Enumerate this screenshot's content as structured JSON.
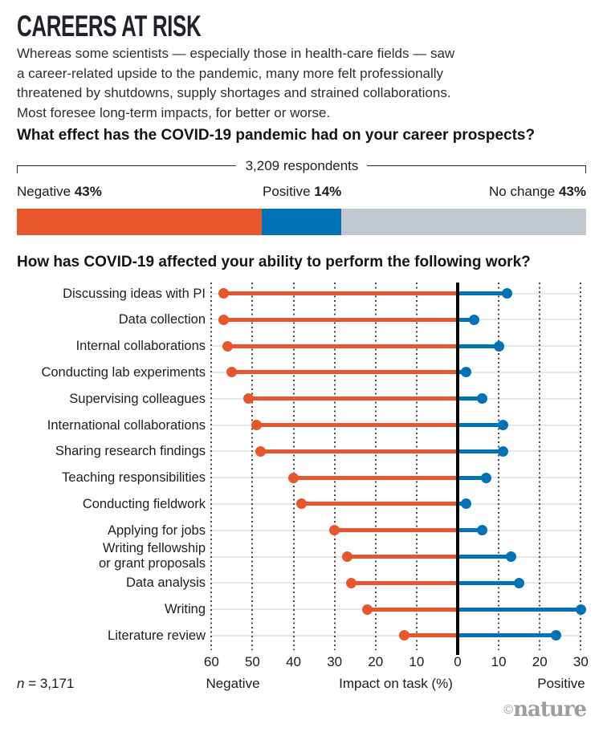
{
  "title": "CAREERS AT RISK",
  "intro_lines": [
    "Whereas some scientists — especially those in health-care fields — saw",
    "a career-related upside to the pandemic, many more felt professionally",
    "threatened by shutdowns, supply shortages and strained collaborations.",
    "Most foresee long-term impacts, for better or worse."
  ],
  "q1": {
    "heading": "What effect has the COVID-19 pandemic had on your career prospects?",
    "respondents_label": "3,209 respondents",
    "segments": [
      {
        "label": "Negative",
        "value_label": "43%",
        "pct": 43,
        "color": "#E7572B"
      },
      {
        "label": "Positive",
        "value_label": "14%",
        "pct": 14,
        "color": "#0072B5"
      },
      {
        "label": "No change",
        "value_label": "43%",
        "pct": 43,
        "color": "#C1C7CF"
      }
    ]
  },
  "q2": {
    "heading": "How has COVID-19 affected your ability to perform the following work?"
  },
  "chart_data": {
    "type": "dumbbell",
    "title": "How has COVID-19 affected your ability to perform the following work?",
    "categories": [
      "Discussing ideas with PI",
      "Data collection",
      "Internal collaborations",
      "Conducting lab experiments",
      "Supervising colleagues",
      "International collaborations",
      "Sharing research findings",
      "Teaching responsibilities",
      "Conducting fieldwork",
      "Applying for jobs",
      "Writing fellowship\nor grant proposals",
      "Data analysis",
      "Writing",
      "Literature review"
    ],
    "series": [
      {
        "name": "Negative",
        "color": "#E7572B",
        "values": [
          57,
          57,
          56,
          55,
          51,
          49,
          48,
          40,
          38,
          30,
          27,
          26,
          22,
          13
        ]
      },
      {
        "name": "Positive",
        "color": "#0072B5",
        "values": [
          12,
          4,
          10,
          2,
          6,
          11,
          11,
          7,
          2,
          6,
          13,
          15,
          30,
          24
        ]
      }
    ],
    "xlabel": "Impact on task (%)",
    "xlim": [
      -60,
      30
    ],
    "xticks": [
      -60,
      -50,
      -40,
      -30,
      -20,
      -10,
      0,
      10,
      20,
      30
    ],
    "grid": "dotted-vertical",
    "legend": "none",
    "side_labels": {
      "negative": "Negative",
      "positive": "Positive"
    }
  },
  "footer": {
    "n_italic": "n",
    "n_rest": " = 3,171",
    "negative_label": "Negative",
    "xaxis_label": "Impact on task (%)",
    "positive_label": "Positive"
  },
  "brand": {
    "copyright": "©",
    "name": "nature"
  }
}
